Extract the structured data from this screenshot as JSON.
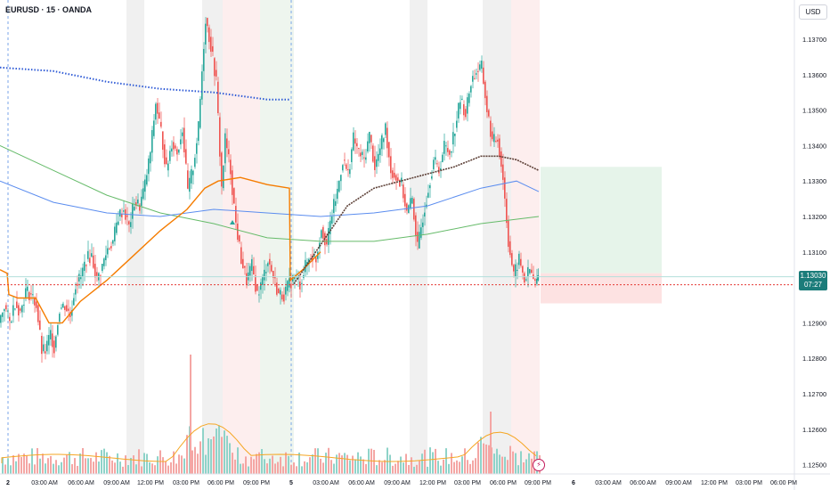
{
  "header": {
    "symbol": "EURUSD · 15 · OANDA",
    "currency": "USD"
  },
  "last_price": {
    "value": "1.13030",
    "countdown": "07:27"
  },
  "colors": {
    "up": "#26a69a",
    "down": "#ef5350",
    "ema_fast": "#5d4037",
    "ema_mid": "#5b8def",
    "ema_slow": "#66bb6a",
    "vwap": "#f57c00",
    "sma_dotted": "#2f5bd6",
    "zone_profit": "#e6f4ea",
    "zone_loss": "#fde2e2"
  },
  "chart_data": {
    "type": "candlestick",
    "instrument": "EURUSD",
    "timeframe": "15",
    "source": "OANDA",
    "y_axis": {
      "ticks": [
        1.137,
        1.136,
        1.135,
        1.134,
        1.133,
        1.132,
        1.131,
        1.129,
        1.128,
        1.127,
        1.126,
        1.125
      ],
      "tick_labels": [
        "1.13700",
        "1.13600",
        "1.13500",
        "1.13400",
        "1.13300",
        "1.13200",
        "1.13100",
        "1.12900",
        "1.12800",
        "1.12700",
        "1.12600",
        "1.12500"
      ],
      "range": [
        1.1248,
        1.138
      ]
    },
    "x_axis": {
      "labels": [
        "2",
        "03:00 AM",
        "06:00 AM",
        "09:00 AM",
        "12:00 PM",
        "03:00 PM",
        "06:00 PM",
        "09:00 PM",
        "5",
        "03:00 AM",
        "06:00 AM",
        "09:00 AM",
        "12:00 PM",
        "03:00 PM",
        "06:00 PM",
        "09:00 PM",
        "6",
        "03:00 AM",
        "06:00 AM",
        "09:00 AM",
        "12:00 PM",
        "03:00 PM",
        "06:00 PM"
      ]
    },
    "last_price": 1.1303,
    "price_series": [
      [
        0,
        1.129
      ],
      [
        6,
        1.1295
      ],
      [
        12,
        1.129
      ],
      [
        18,
        1.1296
      ],
      [
        24,
        1.1293
      ],
      [
        30,
        1.1299
      ],
      [
        36,
        1.1298
      ],
      [
        42,
        1.1295
      ],
      [
        48,
        1.1282
      ],
      [
        52,
        1.1282
      ],
      [
        58,
        1.1287
      ],
      [
        62,
        1.1283
      ],
      [
        68,
        1.1294
      ],
      [
        74,
        1.1295
      ],
      [
        80,
        1.1292
      ],
      [
        86,
        1.1301
      ],
      [
        92,
        1.1303
      ],
      [
        98,
        1.1308
      ],
      [
        104,
        1.1309
      ],
      [
        110,
        1.1302
      ],
      [
        116,
        1.1306
      ],
      [
        122,
        1.1311
      ],
      [
        128,
        1.1313
      ],
      [
        134,
        1.132
      ],
      [
        140,
        1.1322
      ],
      [
        146,
        1.1317
      ],
      [
        152,
        1.1324
      ],
      [
        158,
        1.1323
      ],
      [
        164,
        1.1329
      ],
      [
        170,
        1.1338
      ],
      [
        176,
        1.1352
      ],
      [
        182,
        1.1344
      ],
      [
        188,
        1.1333
      ],
      [
        194,
        1.1341
      ],
      [
        200,
        1.1338
      ],
      [
        206,
        1.1345
      ],
      [
        212,
        1.1327
      ],
      [
        218,
        1.1334
      ],
      [
        224,
        1.1345
      ],
      [
        228,
        1.1361
      ],
      [
        232,
        1.1376
      ],
      [
        238,
        1.1368
      ],
      [
        244,
        1.1358
      ],
      [
        250,
        1.1328
      ],
      [
        254,
        1.1342
      ],
      [
        260,
        1.1333
      ],
      [
        266,
        1.1318
      ],
      [
        272,
        1.1308
      ],
      [
        278,
        1.1302
      ],
      [
        284,
        1.1306
      ],
      [
        290,
        1.1298
      ],
      [
        296,
        1.1302
      ],
      [
        302,
        1.1308
      ],
      [
        308,
        1.1303
      ],
      [
        314,
        1.1298
      ],
      [
        320,
        1.1298
      ],
      [
        326,
        1.1301
      ],
      [
        332,
        1.1303
      ],
      [
        338,
        1.1301
      ],
      [
        344,
        1.1306
      ],
      [
        350,
        1.1309
      ],
      [
        356,
        1.1308
      ],
      [
        362,
        1.1317
      ],
      [
        368,
        1.1312
      ],
      [
        374,
        1.1321
      ],
      [
        380,
        1.1327
      ],
      [
        386,
        1.1336
      ],
      [
        392,
        1.1332
      ],
      [
        398,
        1.1342
      ],
      [
        404,
        1.1338
      ],
      [
        410,
        1.1336
      ],
      [
        416,
        1.1343
      ],
      [
        422,
        1.1334
      ],
      [
        428,
        1.1339
      ],
      [
        434,
        1.1345
      ],
      [
        440,
        1.1333
      ],
      [
        446,
        1.1331
      ],
      [
        452,
        1.1329
      ],
      [
        458,
        1.1321
      ],
      [
        464,
        1.1325
      ],
      [
        470,
        1.1311
      ],
      [
        476,
        1.132
      ],
      [
        482,
        1.1328
      ],
      [
        488,
        1.1336
      ],
      [
        494,
        1.1333
      ],
      [
        500,
        1.134
      ],
      [
        506,
        1.1338
      ],
      [
        512,
        1.1345
      ],
      [
        518,
        1.1353
      ],
      [
        524,
        1.1349
      ],
      [
        530,
        1.1358
      ],
      [
        536,
        1.1361
      ],
      [
        542,
        1.1362
      ],
      [
        548,
        1.135
      ],
      [
        554,
        1.1341
      ],
      [
        560,
        1.1342
      ],
      [
        566,
        1.1331
      ],
      [
        572,
        1.1313
      ],
      [
        578,
        1.1303
      ],
      [
        584,
        1.1308
      ],
      [
        590,
        1.1302
      ],
      [
        596,
        1.1305
      ],
      [
        602,
        1.1301
      ],
      [
        605,
        1.1303
      ]
    ],
    "ema_fast": [
      [
        330,
        1.1301
      ],
      [
        360,
        1.1312
      ],
      [
        390,
        1.1323
      ],
      [
        420,
        1.1328
      ],
      [
        450,
        1.133
      ],
      [
        480,
        1.1332
      ],
      [
        510,
        1.1334
      ],
      [
        540,
        1.1337
      ],
      [
        560,
        1.1337
      ],
      [
        580,
        1.1336
      ],
      [
        605,
        1.1333
      ]
    ],
    "ema_mid": [
      [
        0,
        1.133
      ],
      [
        60,
        1.1324
      ],
      [
        120,
        1.1321
      ],
      [
        180,
        1.132
      ],
      [
        240,
        1.1322
      ],
      [
        300,
        1.1321
      ],
      [
        360,
        1.132
      ],
      [
        420,
        1.1321
      ],
      [
        480,
        1.1323
      ],
      [
        540,
        1.1328
      ],
      [
        580,
        1.133
      ],
      [
        605,
        1.1327
      ]
    ],
    "ema_slow": [
      [
        0,
        1.134
      ],
      [
        60,
        1.1333
      ],
      [
        120,
        1.1326
      ],
      [
        180,
        1.1321
      ],
      [
        240,
        1.1318
      ],
      [
        300,
        1.1314
      ],
      [
        360,
        1.1313
      ],
      [
        420,
        1.1313
      ],
      [
        480,
        1.1315
      ],
      [
        540,
        1.1318
      ],
      [
        605,
        1.132
      ]
    ],
    "vwap": [
      [
        0,
        1.1305
      ],
      [
        8,
        1.1304
      ],
      [
        10,
        1.1298
      ],
      [
        20,
        1.1297
      ],
      [
        40,
        1.1297
      ],
      [
        55,
        1.129
      ],
      [
        70,
        1.129
      ],
      [
        90,
        1.1296
      ],
      [
        120,
        1.1302
      ],
      [
        150,
        1.1309
      ],
      [
        180,
        1.1316
      ],
      [
        210,
        1.1322
      ],
      [
        230,
        1.1328
      ],
      [
        245,
        1.133
      ],
      [
        270,
        1.1331
      ],
      [
        300,
        1.1329
      ],
      [
        325,
        1.1328
      ],
      [
        326,
        1.1302
      ],
      [
        340,
        1.1305
      ],
      [
        360,
        1.131
      ]
    ],
    "sma_dotted": [
      [
        0,
        1.1362
      ],
      [
        60,
        1.1361
      ],
      [
        120,
        1.1358
      ],
      [
        180,
        1.1356
      ],
      [
        240,
        1.1355
      ],
      [
        300,
        1.1353
      ],
      [
        325,
        1.1353
      ]
    ],
    "trade_zone": {
      "x0": 607,
      "x1": 743,
      "top": 1.1334,
      "entry": 1.1304,
      "stop": 1.1297
    },
    "volume_series": [],
    "session_shading": "alternating vertical gray bands; red band on the current session"
  }
}
